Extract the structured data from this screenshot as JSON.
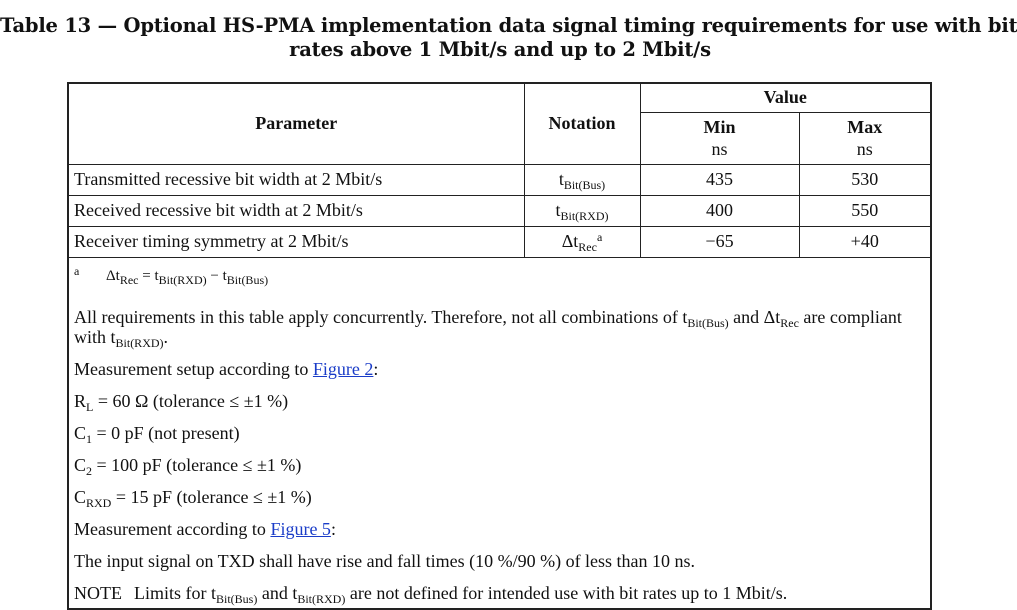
{
  "title": {
    "line1": "Table 13 — Optional HS-PMA implementation data signal timing requirements for use with bit",
    "line2": "rates above 1 Mbit/s and up to 2 Mbit/s"
  },
  "header": {
    "parameter": "Parameter",
    "notation": "Notation",
    "value": "Value",
    "min": "Min",
    "max": "Max",
    "min_unit": "ns",
    "max_unit": "ns"
  },
  "rows": [
    {
      "parameter": "Transmitted recessive bit width at 2 Mbit/s",
      "notation_main": "t",
      "notation_sub": "Bit(Bus)",
      "notation_sup": "",
      "min": "435",
      "max": "530"
    },
    {
      "parameter": "Received recessive bit width at 2 Mbit/s",
      "notation_main": "t",
      "notation_sub": "Bit(RXD)",
      "notation_sup": "",
      "min": "400",
      "max": "550"
    },
    {
      "parameter": "Receiver timing symmetry at 2 Mbit/s",
      "notation_main": "Δt",
      "notation_sub": "Rec",
      "notation_sup": "a",
      "min": "−65",
      "max": "+40"
    }
  ],
  "footnote": {
    "mark": "a",
    "p1": "Δt",
    "s1": "Rec",
    "p2": " = t",
    "s2": "Bit(RXD)",
    "p3": " − t",
    "s3": "Bit(Bus)"
  },
  "notes": {
    "concurrency": {
      "a": "All requirements in this table apply concurrently. Therefore, not all combinations of t",
      "a_sub": "Bit(Bus)",
      "b": " and Δt",
      "b_sub": "Rec",
      "c": " are compliant with t",
      "c_sub": "Bit(RXD)",
      "d": "."
    },
    "setup_prefix": "Measurement setup according to ",
    "setup_link": "Figure 2",
    "setup_suffix": ":",
    "rl_main": "R",
    "rl_sub": "L",
    "rl_rest": " = 60 Ω (tolerance ≤ ±1 %)",
    "c1_main": "C",
    "c1_sub": "1",
    "c1_rest": " = 0 pF (not present)",
    "c2_main": "C",
    "c2_sub": "2",
    "c2_rest": " = 100 pF (tolerance ≤ ±1 %)",
    "crxd_main": "C",
    "crxd_sub": "RXD",
    "crxd_rest": " = 15 pF (tolerance ≤ ±1 %)",
    "meas_prefix": "Measurement according to ",
    "meas_link": "Figure 5",
    "meas_suffix": ":",
    "input_signal": "The input signal on TXD shall have rise and fall times (10 %/90 %) of less than 10 ns.",
    "note_label": "NOTE",
    "note_a": "Limits for t",
    "note_a_sub": "Bit(Bus)",
    "note_b": " and t",
    "note_b_sub": "Bit(RXD)",
    "note_c": " are not defined for intended use with bit rates up to 1 Mbit/s."
  }
}
